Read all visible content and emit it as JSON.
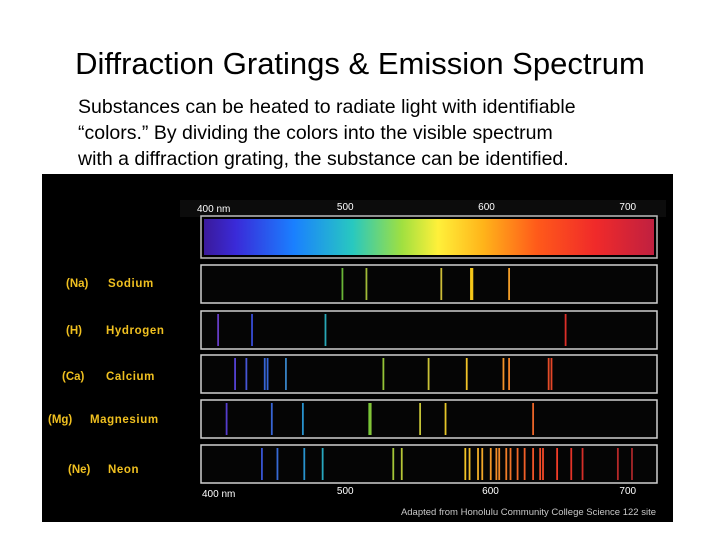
{
  "slide": {
    "title": "Diffraction Gratings & Emission Spectrum",
    "body_lines": [
      "Substances can be heated to radiate light with identifiable",
      "“colors.”  By dividing the colors into the visible spectrum",
      "with a diffraction grating, the substance can be identified."
    ]
  },
  "figure": {
    "top_axis": {
      "min_label": "400 nm",
      "labels": [
        "500",
        "600",
        "700"
      ]
    },
    "bottom_axis": {
      "min_label": "400 nm",
      "labels": [
        "500",
        "600",
        "700"
      ]
    },
    "credit": "Adapted from Honolulu Community College Science 122 site",
    "wavelength_range_nm": [
      400,
      720
    ],
    "elements": [
      {
        "symbol": "(Na)",
        "name": "Sodium",
        "lines": [
          {
            "nm": 498,
            "c": "#6fbf3a"
          },
          {
            "nm": 515,
            "c": "#a9c43a"
          },
          {
            "nm": 568,
            "c": "#d8c63a"
          },
          {
            "nm": 589,
            "c": "#ffd21a"
          },
          {
            "nm": 590,
            "c": "#ffcf1a"
          },
          {
            "nm": 616,
            "c": "#ffa52a"
          }
        ]
      },
      {
        "symbol": "(H)",
        "name": "Hydrogen",
        "lines": [
          {
            "nm": 410,
            "c": "#6a3fd0"
          },
          {
            "nm": 434,
            "c": "#3a50e0"
          },
          {
            "nm": 486,
            "c": "#2ab0c0"
          },
          {
            "nm": 656,
            "c": "#e8302a"
          }
        ]
      },
      {
        "symbol": "(Ca)",
        "name": "Calcium",
        "lines": [
          {
            "nm": 422,
            "c": "#5a46e0"
          },
          {
            "nm": 430,
            "c": "#4a5ae0"
          },
          {
            "nm": 443,
            "c": "#3a6ae0"
          },
          {
            "nm": 445,
            "c": "#3a6ae0"
          },
          {
            "nm": 458,
            "c": "#3a8ad0"
          },
          {
            "nm": 527,
            "c": "#9ccf3a"
          },
          {
            "nm": 559,
            "c": "#d4cc3a"
          },
          {
            "nm": 586,
            "c": "#ffcd2a"
          },
          {
            "nm": 612,
            "c": "#ff9a2a"
          },
          {
            "nm": 616,
            "c": "#ff8a2a"
          },
          {
            "nm": 644,
            "c": "#f0502a"
          },
          {
            "nm": 646,
            "c": "#f04a2a"
          }
        ]
      },
      {
        "symbol": "(Mg)",
        "name": "Magnesium",
        "lines": [
          {
            "nm": 416,
            "c": "#5a3fd8"
          },
          {
            "nm": 448,
            "c": "#3a6ae0"
          },
          {
            "nm": 470,
            "c": "#2a9ad8"
          },
          {
            "nm": 517,
            "c": "#7acd3a"
          },
          {
            "nm": 518,
            "c": "#8acd3a"
          },
          {
            "nm": 553,
            "c": "#cfcd3a"
          },
          {
            "nm": 571,
            "c": "#f0d02a"
          },
          {
            "nm": 633,
            "c": "#f86a2a"
          }
        ]
      },
      {
        "symbol": "(Ne)",
        "name": "Neon",
        "lines": [
          {
            "nm": 441,
            "c": "#3a5ae0"
          },
          {
            "nm": 452,
            "c": "#3a70e0"
          },
          {
            "nm": 471,
            "c": "#2a9ad8"
          },
          {
            "nm": 484,
            "c": "#2ab0c8"
          },
          {
            "nm": 534,
            "c": "#acd03a"
          },
          {
            "nm": 540,
            "c": "#c0d03a"
          },
          {
            "nm": 585,
            "c": "#ffd02a"
          },
          {
            "nm": 588,
            "c": "#ffc82a"
          },
          {
            "nm": 594,
            "c": "#ffb82a"
          },
          {
            "nm": 597,
            "c": "#ffb02a"
          },
          {
            "nm": 603,
            "c": "#ffa02a"
          },
          {
            "nm": 607,
            "c": "#ff962a"
          },
          {
            "nm": 609,
            "c": "#ff902a"
          },
          {
            "nm": 614,
            "c": "#ff842a"
          },
          {
            "nm": 617,
            "c": "#ff7a2a"
          },
          {
            "nm": 622,
            "c": "#ff6e2a"
          },
          {
            "nm": 627,
            "c": "#ff642a"
          },
          {
            "nm": 633,
            "c": "#ff5a2a"
          },
          {
            "nm": 638,
            "c": "#ff522a"
          },
          {
            "nm": 640,
            "c": "#ff4c2a"
          },
          {
            "nm": 650,
            "c": "#ff402a"
          },
          {
            "nm": 660,
            "c": "#f0362a"
          },
          {
            "nm": 668,
            "c": "#e0302a"
          },
          {
            "nm": 693,
            "c": "#c02a2a"
          },
          {
            "nm": 703,
            "c": "#b0282a"
          }
        ]
      }
    ],
    "colors": {
      "label": "#f0c020",
      "strip": "#000000",
      "frame": "#d0d0d0",
      "credit": "#c8c8c8"
    }
  }
}
